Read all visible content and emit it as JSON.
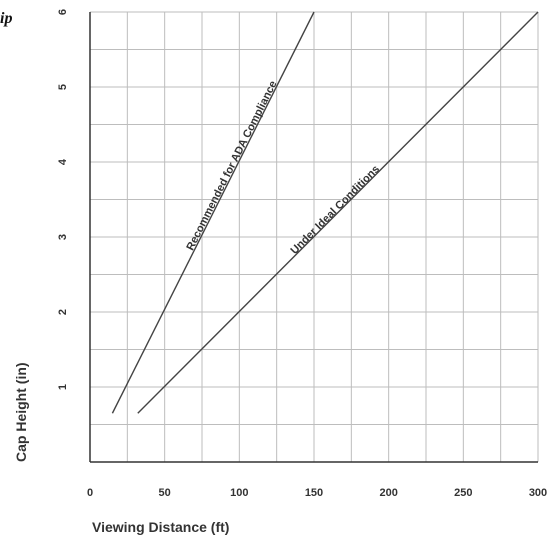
{
  "corner_text": "ip",
  "chart_data": {
    "type": "line",
    "title": "",
    "xlabel": "Viewing Distance (ft)",
    "ylabel": "Cap Height (in)",
    "xlim": [
      0,
      300
    ],
    "ylim": [
      0,
      6
    ],
    "x_tick_labels": [
      "0",
      "50",
      "100",
      "150",
      "200",
      "250",
      "300"
    ],
    "y_tick_labels": [
      "1",
      "2",
      "3",
      "4",
      "5",
      "6"
    ],
    "x_ticks": [
      0,
      50,
      100,
      150,
      200,
      250,
      300
    ],
    "y_ticks": [
      1,
      2,
      3,
      4,
      5,
      6
    ],
    "grid": true,
    "series": [
      {
        "name": "Recommended for ADA Compliance",
        "x": [
          15,
          150
        ],
        "y": [
          0.65,
          6.0
        ]
      },
      {
        "name": "Under Ideal Conditions",
        "x": [
          32,
          300
        ],
        "y": [
          0.65,
          6.0
        ]
      }
    ],
    "line_color": "#444444"
  }
}
